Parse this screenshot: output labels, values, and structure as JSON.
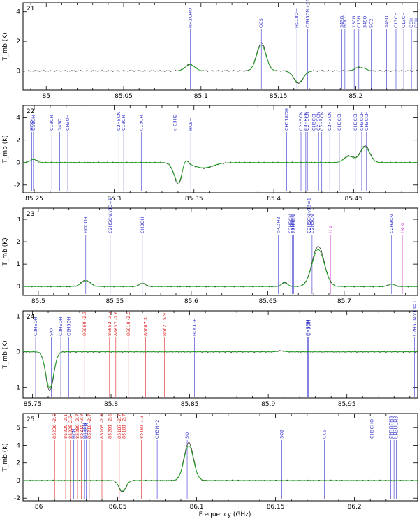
{
  "chart_data": [
    {
      "type": "line",
      "panel": "21",
      "xlim": [
        84.985,
        85.24
      ],
      "ylim": [
        -1.3,
        4.6
      ],
      "xticks": [
        85,
        85.05,
        85.1,
        85.15,
        85.2
      ],
      "xticklabels": [
        "85",
        "85.05",
        "85.1",
        "85.15",
        "85.2"
      ],
      "yticks": [
        0,
        2,
        4
      ],
      "yticklabels": [
        "0",
        "2",
        "4"
      ],
      "ylabel": "T_mb (K)",
      "features": [
        {
          "center": 85.093,
          "amp": 0.45,
          "width": 0.003
        },
        {
          "center": 85.139,
          "amp": 1.9,
          "width": 0.003
        },
        {
          "center": 85.163,
          "amp": -0.85,
          "width": 0.003
        },
        {
          "center": 85.201,
          "amp": 0.2,
          "width": 0.002
        },
        {
          "center": 85.205,
          "amp": 0.18,
          "width": 0.002
        }
      ],
      "lines": [
        {
          "x": 85.093,
          "label": "NH2CHO",
          "color": "#3333cc"
        },
        {
          "x": 85.139,
          "label": "OCS",
          "color": "#3333cc"
        },
        {
          "x": 85.162,
          "label": "HC18O+",
          "color": "#3333cc"
        },
        {
          "x": 85.169,
          "label": "C2H5CN,v13=1",
          "color": "#3333cc"
        },
        {
          "x": 85.191,
          "label": "34SO",
          "color": "#3333cc"
        },
        {
          "x": 85.193,
          "label": "HDCO",
          "color": "#3333cc"
        },
        {
          "x": 85.199,
          "label": "13CN",
          "color": "#3333cc"
        },
        {
          "x": 85.202,
          "label": "C13N",
          "color": "#3333cc"
        },
        {
          "x": 85.206,
          "label": "34SO",
          "color": "#3333cc"
        },
        {
          "x": 85.21,
          "label": "SO2",
          "color": "#3333cc"
        },
        {
          "x": 85.22,
          "label": "34SO",
          "color": "#3333cc"
        },
        {
          "x": 85.226,
          "label": "C13CH",
          "color": "#3333cc"
        },
        {
          "x": 85.231,
          "label": "C13CH",
          "color": "#3333cc"
        },
        {
          "x": 85.236,
          "label": "CCH",
          "color": "#3333cc"
        },
        {
          "x": 85.239,
          "label": "CCH",
          "color": "#3333cc"
        }
      ]
    },
    {
      "type": "line",
      "panel": "22",
      "xlim": [
        85.243,
        85.49
      ],
      "ylim": [
        -2.7,
        5.1
      ],
      "xticks": [
        85.25,
        85.3,
        85.35,
        85.4,
        85.45
      ],
      "xticklabels": [
        "85.25",
        "85.3",
        "85.35",
        "85.4",
        "85.45"
      ],
      "yticks": [
        -2,
        0,
        2,
        4
      ],
      "yticklabels": [
        "-2",
        "0",
        "2",
        "4"
      ],
      "ylabel": "T_mb (K)",
      "features": [
        {
          "center": 85.2495,
          "amp": 0.3,
          "width": 0.002
        },
        {
          "center": 85.341,
          "amp": -2.2,
          "width": 0.003
        },
        {
          "center": 85.344,
          "amp": 1.3,
          "width": 0.002
        },
        {
          "center": 85.356,
          "amp": -0.5,
          "width": 0.006
        },
        {
          "center": 85.447,
          "amp": 0.6,
          "width": 0.003
        },
        {
          "center": 85.457,
          "amp": 1.5,
          "width": 0.003
        }
      ],
      "lines": [
        {
          "x": 85.2485,
          "label": "HDO",
          "color": "#3333cc"
        },
        {
          "x": 85.2495,
          "label": "C13OH",
          "color": "#3333cc"
        },
        {
          "x": 85.261,
          "label": "C13CH",
          "color": "#3333cc"
        },
        {
          "x": 85.266,
          "label": "34SO",
          "color": "#3333cc"
        },
        {
          "x": 85.271,
          "label": "CH3OH",
          "color": "#3333cc"
        },
        {
          "x": 85.303,
          "label": "C2H5CN",
          "color": "#3333cc"
        },
        {
          "x": 85.306,
          "label": "C13CH",
          "color": "#3333cc"
        },
        {
          "x": 85.317,
          "label": "C13CH",
          "color": "#3333cc"
        },
        {
          "x": 85.338,
          "label": "c-C3H2",
          "color": "#3333cc"
        },
        {
          "x": 85.348,
          "label": "HCS+",
          "color": "#3333cc"
        },
        {
          "x": 85.408,
          "label": "CH318OH",
          "color": "#3333cc"
        },
        {
          "x": 85.417,
          "label": "C2H5CN",
          "color": "#3333cc"
        },
        {
          "x": 85.42,
          "label": "C2H5CN",
          "color": "#3333cc"
        },
        {
          "x": 85.421,
          "label": "C2H5CN",
          "color": "#3333cc"
        },
        {
          "x": 85.425,
          "label": "CH3CCH",
          "color": "#3333cc"
        },
        {
          "x": 85.428,
          "label": "C2H5CN",
          "color": "#3333cc"
        },
        {
          "x": 85.43,
          "label": "C2H5CN",
          "color": "#3333cc"
        },
        {
          "x": 85.435,
          "label": "C2H3CN",
          "color": "#3333cc"
        },
        {
          "x": 85.441,
          "label": "CH3CCH",
          "color": "#3333cc"
        },
        {
          "x": 85.451,
          "label": "CH3CCH",
          "color": "#3333cc"
        },
        {
          "x": 85.455,
          "label": "CH3CCH",
          "color": "#3333cc"
        },
        {
          "x": 85.458,
          "label": "CH3CCH",
          "color": "#3333cc"
        }
      ]
    },
    {
      "type": "line",
      "panel": "23",
      "xlim": [
        85.49,
        85.748
      ],
      "ylim": [
        -0.4,
        3.5
      ],
      "xticks": [
        85.5,
        85.55,
        85.6,
        85.65,
        85.7
      ],
      "xticklabels": [
        "85.5",
        "85.55",
        "85.6",
        "85.65",
        "85.7"
      ],
      "yticks": [
        0,
        1,
        2,
        3
      ],
      "yticklabels": [
        "0",
        "1",
        "2",
        "3"
      ],
      "ylabel": "T_mb (K)",
      "features": [
        {
          "center": 85.531,
          "amp": 0.28,
          "width": 0.003
        },
        {
          "center": 85.568,
          "amp": 0.15,
          "width": 0.002
        },
        {
          "center": 85.661,
          "amp": 0.18,
          "width": 0.002
        },
        {
          "center": 85.683,
          "amp": 1.8,
          "width": 0.004
        },
        {
          "center": 85.731,
          "amp": 0.12,
          "width": 0.002
        }
      ],
      "lines": [
        {
          "x": 85.531,
          "label": "HOCO+",
          "color": "#3333cc"
        },
        {
          "x": 85.547,
          "label": "C2H5CN,v13=1",
          "color": "#3333cc"
        },
        {
          "x": 85.568,
          "label": "CH3OH",
          "color": "#3333cc"
        },
        {
          "x": 85.657,
          "label": "c-C3H2",
          "color": "#3333cc"
        },
        {
          "x": 85.665,
          "label": "C2H5CN",
          "color": "#3333cc"
        },
        {
          "x": 85.666,
          "label": "C2H5CN",
          "color": "#3333cc"
        },
        {
          "x": 85.667,
          "label": "C2H5CN",
          "color": "#3333cc"
        },
        {
          "x": 85.677,
          "label": "C2H5CN,v13=1",
          "color": "#3333cc"
        },
        {
          "x": 85.679,
          "label": "C2H5CN",
          "color": "#3333cc"
        },
        {
          "x": 85.691,
          "label": "H α",
          "color": "#cc33cc"
        },
        {
          "x": 85.731,
          "label": "C2H3CN",
          "color": "#3333cc"
        },
        {
          "x": 85.738,
          "label": "He α",
          "color": "#cc33cc"
        }
      ]
    },
    {
      "type": "line",
      "panel": "24",
      "xlim": [
        85.744,
        85.995
      ],
      "ylim": [
        -1.3,
        1.15
      ],
      "xticks": [
        85.75,
        85.8,
        85.85,
        85.9,
        85.95
      ],
      "xticklabels": [
        "85.75",
        "85.8",
        "85.85",
        "85.9",
        "85.95"
      ],
      "yticks": [
        -1,
        0,
        1
      ],
      "yticklabels": [
        "-1",
        "0",
        "1"
      ],
      "ylabel": "T_mb (K)",
      "features": [
        {
          "center": 85.761,
          "amp": -1.1,
          "width": 0.0025
        },
        {
          "center": 85.908,
          "amp": 0.03,
          "width": 0.002
        }
      ],
      "lines": [
        {
          "x": 85.752,
          "label": "C2H5OH",
          "color": "#3333cc"
        },
        {
          "x": 85.762,
          "label": "SiO",
          "color": "#3333cc"
        },
        {
          "x": 85.768,
          "label": "C2H5OH",
          "color": "#3333cc"
        },
        {
          "x": 85.773,
          "label": "C2H5OH",
          "color": "#3333cc"
        },
        {
          "x": 85.783,
          "label": "86660 -2.7",
          "color": "#dd2222"
        },
        {
          "x": 85.799,
          "label": "86652 -2.7",
          "color": "#dd2222"
        },
        {
          "x": 85.803,
          "label": "86637 -2.6",
          "color": "#dd2222"
        },
        {
          "x": 85.811,
          "label": "86618 -2.5",
          "color": "#dd2222"
        },
        {
          "x": 85.822,
          "label": "86607 3",
          "color": "#dd2222"
        },
        {
          "x": 85.834,
          "label": "86621 5.9",
          "color": "#dd2222"
        },
        {
          "x": 85.853,
          "label": "HOCO+",
          "color": "#3333cc"
        },
        {
          "x": 85.925,
          "label": "CH3OH",
          "color": "#3333cc"
        },
        {
          "x": 85.9255,
          "label": "CH3OH",
          "color": "#3333cc"
        },
        {
          "x": 85.926,
          "label": "CH3OH",
          "color": "#3333cc"
        },
        {
          "x": 85.993,
          "label": "C2H5CN,v13=1",
          "color": "#3333cc"
        }
      ]
    },
    {
      "type": "line",
      "panel": "25",
      "xlim": [
        85.99,
        86.24
      ],
      "ylim": [
        -2.3,
        7.6
      ],
      "xticks": [
        86,
        86.05,
        86.1,
        86.15,
        86.2
      ],
      "xticklabels": [
        "86",
        "86.05",
        "86.1",
        "86.15",
        "86.2"
      ],
      "yticks": [
        -2,
        0,
        2,
        4,
        6
      ],
      "yticklabels": [
        "-2",
        "0",
        "2",
        "4",
        "6"
      ],
      "ylabel": "T_mb (K)",
      "xlabel": "Frequency (GHz)",
      "features": [
        {
          "center": 86.053,
          "amp": -1.3,
          "width": 0.0022
        },
        {
          "center": 86.095,
          "amp": 4.3,
          "width": 0.003
        }
      ],
      "lines": [
        {
          "x": 86.01,
          "label": "85236 -2.6",
          "color": "#dd2222"
        },
        {
          "x": 86.017,
          "label": "85229 -2.1",
          "color": "#dd2222"
        },
        {
          "x": 86.02,
          "label": "85225 2.9",
          "color": "#dd2222"
        },
        {
          "x": 86.022,
          "label": "HCN",
          "color": "#3333cc"
        },
        {
          "x": 86.0245,
          "label": "85280 -2.7",
          "color": "#dd2222"
        },
        {
          "x": 86.027,
          "label": "85215 -2.8",
          "color": "#dd2222"
        },
        {
          "x": 86.029,
          "label": "H13CN",
          "color": "#3333cc"
        },
        {
          "x": 86.03,
          "label": "H13CN",
          "color": "#3333cc"
        },
        {
          "x": 86.032,
          "label": "85210 -2.7",
          "color": "#dd2222"
        },
        {
          "x": 86.04,
          "label": "85205 -2.6",
          "color": "#dd2222"
        },
        {
          "x": 86.045,
          "label": "85201 -2.6",
          "color": "#dd2222"
        },
        {
          "x": 86.051,
          "label": "85187 -2.7",
          "color": "#dd2222"
        },
        {
          "x": 86.054,
          "label": "85181 -2.7",
          "color": "#dd2222"
        },
        {
          "x": 86.065,
          "label": "85181 7.2",
          "color": "#dd2222"
        },
        {
          "x": 86.075,
          "label": "CH3NH2",
          "color": "#3333cc"
        },
        {
          "x": 86.094,
          "label": "SO",
          "color": "#3333cc"
        },
        {
          "x": 86.154,
          "label": "SO2",
          "color": "#3333cc"
        },
        {
          "x": 86.181,
          "label": "CCS",
          "color": "#3333cc"
        },
        {
          "x": 86.211,
          "label": "CH3CHO",
          "color": "#3333cc"
        },
        {
          "x": 86.223,
          "label": "CH3OCH3",
          "color": "#3333cc"
        },
        {
          "x": 86.225,
          "label": "CH3OCH3",
          "color": "#3333cc"
        },
        {
          "x": 86.2265,
          "label": "CH3OCH3",
          "color": "#3333cc"
        }
      ]
    }
  ],
  "colors": {
    "observed": "#222222",
    "model": "#22aa22",
    "molecule_label": "#3333cc",
    "recombination_label": "#cc33cc",
    "unidentified_label": "#dd2222"
  }
}
